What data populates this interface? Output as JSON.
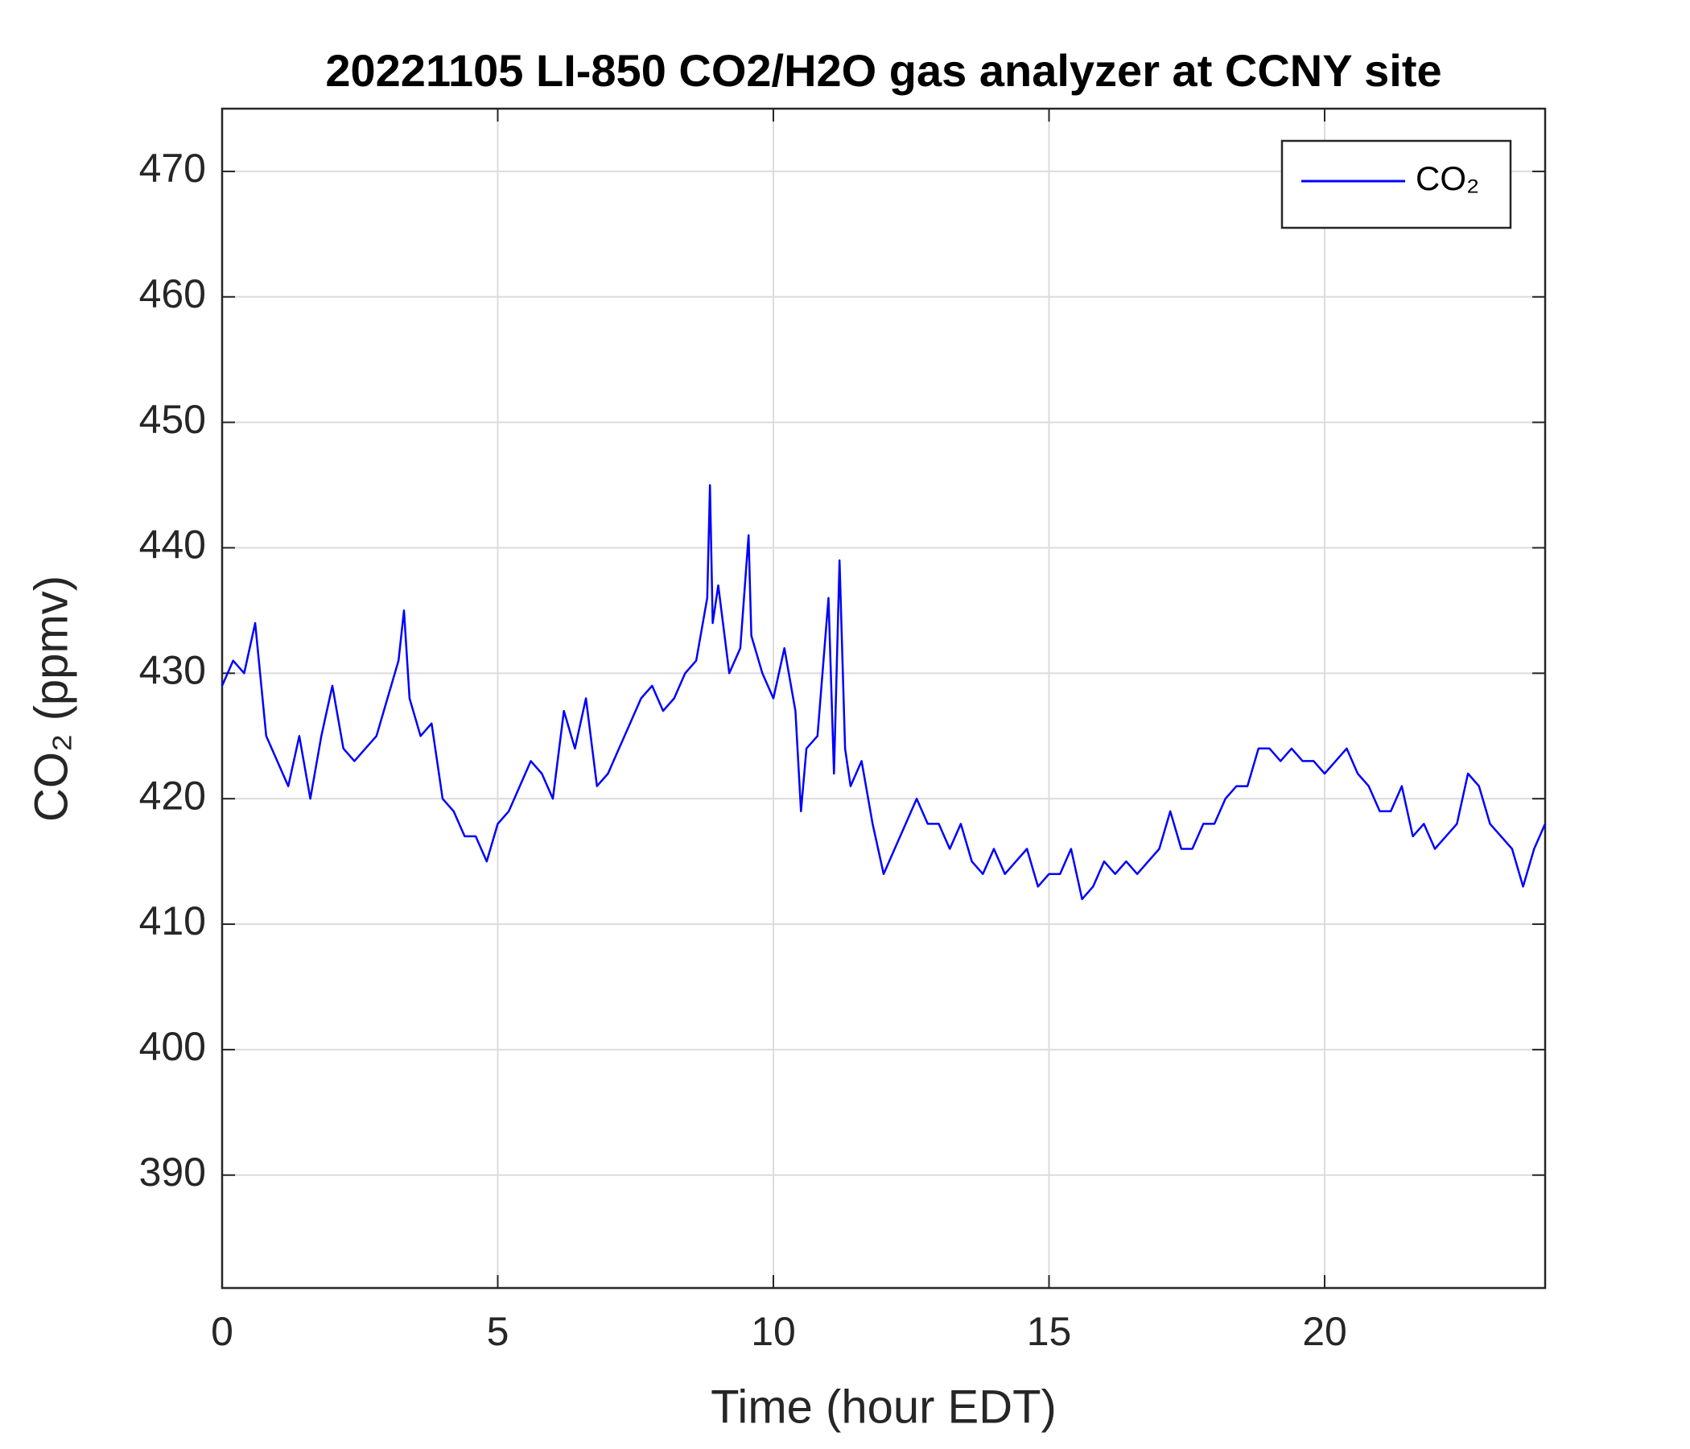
{
  "chart_data": {
    "type": "line",
    "title": "20221105 LI-850 CO2/H2O gas analyzer at CCNY site",
    "xlabel": "Time (hour EDT)",
    "ylabel": "CO₂ (ppmv)",
    "x": [
      0,
      0.2,
      0.4,
      0.6,
      0.8,
      1.0,
      1.2,
      1.4,
      1.6,
      1.8,
      2.0,
      2.2,
      2.4,
      2.6,
      2.8,
      3.0,
      3.2,
      3.3,
      3.4,
      3.6,
      3.8,
      4.0,
      4.2,
      4.4,
      4.6,
      4.8,
      5.0,
      5.2,
      5.4,
      5.6,
      5.8,
      6.0,
      6.2,
      6.4,
      6.6,
      6.8,
      7.0,
      7.2,
      7.4,
      7.6,
      7.8,
      8.0,
      8.2,
      8.4,
      8.6,
      8.8,
      8.85,
      8.9,
      9.0,
      9.2,
      9.4,
      9.55,
      9.6,
      9.8,
      10.0,
      10.2,
      10.4,
      10.5,
      10.6,
      10.8,
      11.0,
      11.1,
      11.2,
      11.3,
      11.4,
      11.6,
      11.8,
      12.0,
      12.2,
      12.4,
      12.6,
      12.8,
      13.0,
      13.2,
      13.4,
      13.6,
      13.8,
      14.0,
      14.2,
      14.4,
      14.6,
      14.8,
      15.0,
      15.2,
      15.4,
      15.6,
      15.8,
      16.0,
      16.2,
      16.4,
      16.6,
      16.8,
      17.0,
      17.2,
      17.4,
      17.6,
      17.8,
      18.0,
      18.2,
      18.4,
      18.6,
      18.8,
      19.0,
      19.2,
      19.4,
      19.6,
      19.8,
      20.0,
      20.2,
      20.4,
      20.6,
      20.8,
      21.0,
      21.2,
      21.4,
      21.6,
      21.8,
      22.0,
      22.2,
      22.4,
      22.6,
      22.8,
      23.0,
      23.2,
      23.4,
      23.6,
      23.8,
      24
    ],
    "series": [
      {
        "name": "CO₂",
        "color": "#0000ff",
        "values": [
          429,
          431,
          430,
          434,
          425,
          423,
          421,
          425,
          420,
          425,
          429,
          424,
          423,
          424,
          425,
          428,
          431,
          435,
          428,
          425,
          426,
          420,
          419,
          417,
          417,
          415,
          418,
          419,
          421,
          423,
          422,
          420,
          427,
          424,
          428,
          421,
          422,
          424,
          426,
          428,
          429,
          427,
          428,
          430,
          431,
          436,
          445,
          434,
          437,
          430,
          432,
          441,
          433,
          430,
          428,
          432,
          427,
          419,
          424,
          425,
          436,
          422,
          439,
          424,
          421,
          423,
          418,
          414,
          416,
          418,
          420,
          418,
          418,
          416,
          418,
          415,
          414,
          416,
          414,
          415,
          416,
          413,
          414,
          414,
          416,
          412,
          413,
          415,
          414,
          415,
          414,
          415,
          416,
          419,
          416,
          416,
          418,
          418,
          420,
          421,
          421,
          424,
          424,
          423,
          424,
          423,
          423,
          422,
          423,
          424,
          422,
          421,
          419,
          419,
          421,
          417,
          418,
          416,
          417,
          418,
          422,
          421,
          418,
          417,
          416,
          413,
          416,
          418
        ]
      }
    ],
    "xlim": [
      0,
      24
    ],
    "ylim": [
      381,
      475
    ],
    "xticks": [
      0,
      5,
      10,
      15,
      20
    ],
    "yticks": [
      390,
      400,
      410,
      420,
      430,
      440,
      450,
      460,
      470
    ],
    "grid": true,
    "legend": "upper right"
  }
}
